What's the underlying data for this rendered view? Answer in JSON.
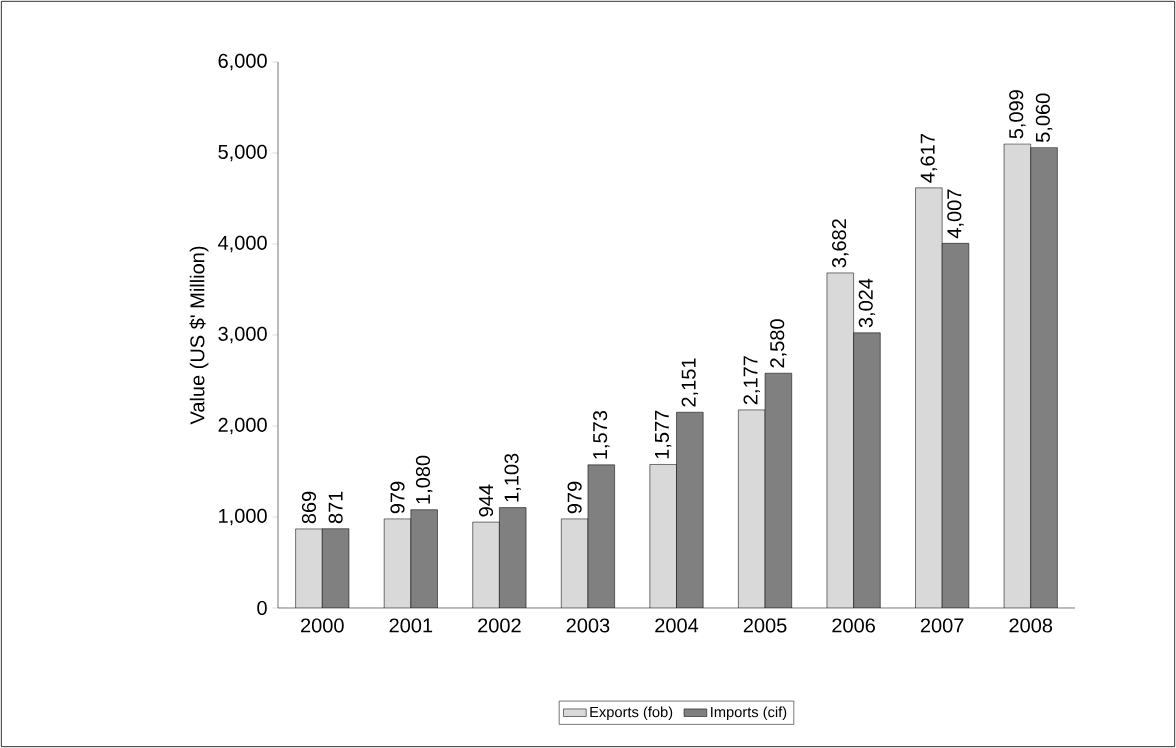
{
  "chart_data": {
    "type": "bar",
    "ylabel": "Value (US $' Million)",
    "categories": [
      "2000",
      "2001",
      "2002",
      "2003",
      "2004",
      "2005",
      "2006",
      "2007",
      "2008"
    ],
    "series": [
      {
        "name": "Exports (fob)",
        "color": "#d9d9d9",
        "values": [
          869,
          979,
          944,
          979,
          1577,
          2177,
          3682,
          4617,
          5099
        ],
        "value_labels": [
          "869",
          "979",
          "944",
          "979",
          "1,577",
          "2,177",
          "3,682",
          "4,617",
          "5,099"
        ]
      },
      {
        "name": "Imports (cif)",
        "color": "#808080",
        "values": [
          871,
          1080,
          1103,
          1573,
          2151,
          2580,
          3024,
          4007,
          5060
        ],
        "value_labels": [
          "871",
          "1,080",
          "1,103",
          "1,573",
          "2,151",
          "2,580",
          "3,024",
          "4,007",
          "5,060"
        ]
      }
    ],
    "ylim": [
      0,
      6000
    ],
    "yticks": [
      0,
      {
        "value": 1000,
        "label": "1,000"
      },
      {
        "value": 2000,
        "label": "2,000"
      },
      {
        "value": 3000,
        "label": "3,000"
      },
      {
        "value": 4000,
        "label": "4,000"
      },
      {
        "value": 5000,
        "label": "5,000"
      },
      {
        "value": 6000,
        "label": "6,000"
      }
    ],
    "grid": false,
    "legend": "bottom"
  }
}
